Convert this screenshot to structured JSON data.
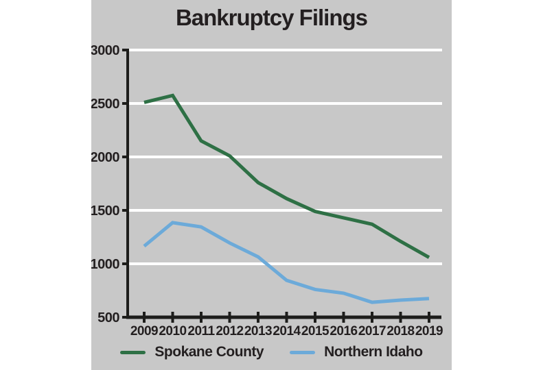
{
  "chart_data": {
    "type": "line",
    "title": "Bankruptcy Filings",
    "x_tick_labels": [
      "2009",
      "2010",
      "2011",
      "2012",
      "2013",
      "2014",
      "2015",
      "2016",
      "2017",
      "2018",
      "2019"
    ],
    "y_ticks": [
      500,
      1000,
      1500,
      2000,
      2500,
      3000
    ],
    "y_tick_labels": [
      "500",
      "1000",
      "1500",
      "2000",
      "2500",
      "3000"
    ],
    "ylim": [
      500,
      3000
    ],
    "grid": "horizontal-white-lines",
    "legend_position": "bottom-center",
    "series": [
      {
        "name": "Spokane County",
        "color": "#2e7045",
        "values": [
          2510,
          2575,
          2150,
          2010,
          1760,
          1610,
          1490,
          1430,
          1370,
          1210,
          1060
        ]
      },
      {
        "name": "Northern Idaho",
        "color": "#6caad9",
        "values": [
          1165,
          1385,
          1345,
          1195,
          1065,
          845,
          760,
          725,
          640,
          660,
          675
        ]
      }
    ]
  },
  "colors": {
    "background": "#ffffff",
    "card": "#c8c8c8",
    "ink": "#231f20",
    "axis": "#1d1d1b",
    "gridline": "#ffffff"
  }
}
